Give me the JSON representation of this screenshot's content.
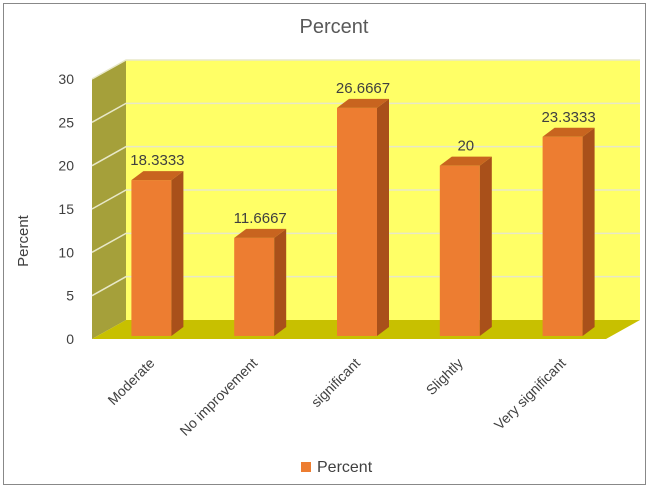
{
  "chart_data": {
    "type": "bar",
    "title": "Percent",
    "xlabel": "",
    "ylabel": "Percent",
    "categories": [
      "Moderate",
      "No improvement",
      "significant",
      "Slightly",
      "Very significant"
    ],
    "series": [
      {
        "name": "Percent",
        "values": [
          18.3333,
          11.6667,
          26.6667,
          20,
          23.3333
        ],
        "data_labels": [
          "18.3333",
          "11.6667",
          "26.6667",
          "20",
          "23.3333"
        ]
      }
    ],
    "ylim": [
      0,
      30
    ],
    "yticks": [
      "0",
      "5",
      "10",
      "15",
      "20",
      "25",
      "30"
    ],
    "grid": true,
    "legend": "bottom",
    "three_d": true,
    "colors": {
      "bar_front": "#ED7D31",
      "bar_side": "#A9501A",
      "bar_top": "#C8641F",
      "back_wall": "#FFFF66",
      "side_wall": "#A5A03A",
      "floor": "#C8C000",
      "gridline": "#E8E8C8",
      "text": "#404040"
    }
  }
}
